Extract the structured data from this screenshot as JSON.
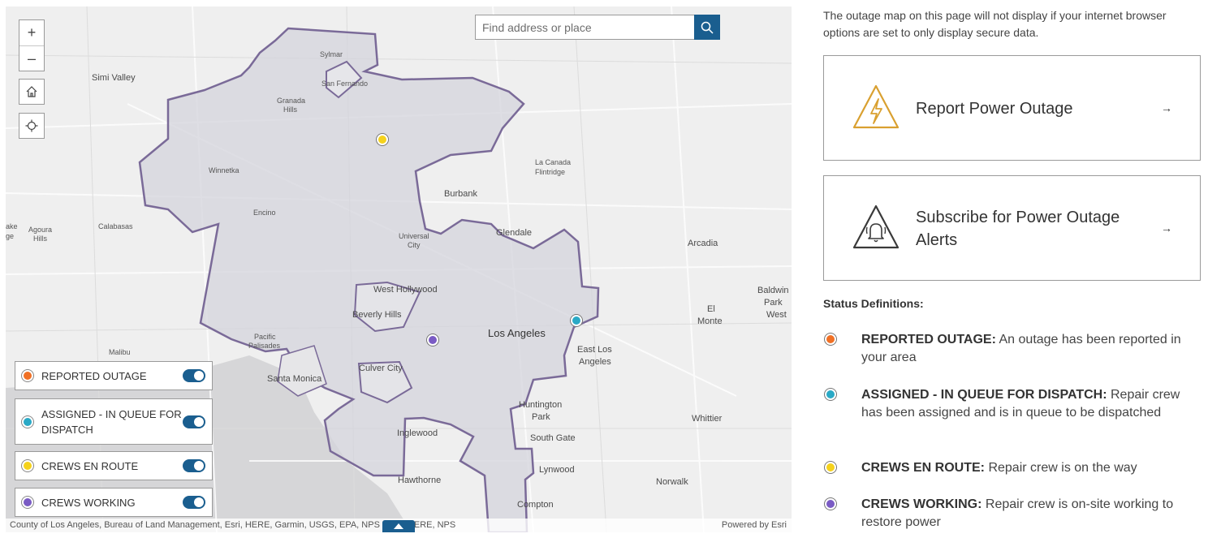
{
  "map": {
    "search_placeholder": "Find address or place",
    "zoom_in": "+",
    "zoom_out": "–",
    "places": {
      "simi_valley": "Simi Valley",
      "sylmar": "Sylmar",
      "san_fernando": "San Fernando",
      "granada_hills_1": "Granada",
      "granada_hills_2": "Hills",
      "winnetka": "Winnetka",
      "la_canada_1": "La Canada",
      "la_canada_2": "Flintridge",
      "burbank": "Burbank",
      "agoura_1": "Agoura",
      "agoura_2": "Hills",
      "calabasas": "Calabasas",
      "encino": "Encino",
      "universal_1": "Universal",
      "universal_2": "City",
      "glendale": "Glendale",
      "arcadia": "Arcadia",
      "baldwin_1": "Baldwin",
      "baldwin_2": "Park",
      "baldwin_3": "West",
      "west_hollywood": "West Hollywood",
      "el_monte_1": "El",
      "el_monte_2": "Monte",
      "beverly_hills": "Beverly Hills",
      "pacific_1": "Pacific",
      "pacific_2": "Palisades",
      "los_angeles": "Los Angeles",
      "malibu": "Malibu",
      "east_la_1": "East Los",
      "east_la_2": "Angeles",
      "santa_monica": "Santa Monica",
      "culver_city": "Culver City",
      "huntington_1": "Huntington",
      "huntington_2": "Park",
      "whittier": "Whittier",
      "inglewood": "Inglewood",
      "south_gate": "South Gate",
      "lynwood": "Lynwood",
      "hawthorne": "Hawthorne",
      "norwalk": "Norwalk",
      "compton": "Compton",
      "lake_1": "ake",
      "lake_2": "ge"
    },
    "legend": [
      {
        "label": "REPORTED OUTAGE",
        "color": "#f07025",
        "enabled": true
      },
      {
        "label": "ASSIGNED - IN QUEUE FOR DISPATCH",
        "color": "#2aa9c6",
        "enabled": true
      },
      {
        "label": "CREWS EN ROUTE",
        "color": "#f5d21c",
        "enabled": true
      },
      {
        "label": "CREWS WORKING",
        "color": "#7a5bc4",
        "enabled": true
      }
    ],
    "attribution": "County of Los Angeles, Bureau of Land Management, Esri, HERE, Garmin, USGS, EPA, NPS | Esri, HERE, NPS",
    "powered_by": "Powered by Esri"
  },
  "panel": {
    "note": "The outage map on this page will not display if your internet browser options are set to only display secure data.",
    "report_card": {
      "title": "Report Power Outage",
      "arrow": "→",
      "icon": "warning-lightning-icon"
    },
    "subscribe_card": {
      "title": "Subscribe for Power Outage Alerts",
      "arrow": "→",
      "icon": "alert-bell-icon"
    },
    "status_heading": "Status Definitions:",
    "definitions": [
      {
        "term": "REPORTED OUTAGE:",
        "text": "An outage has been reported in your area",
        "color": "#f07025"
      },
      {
        "term": "ASSIGNED - IN QUEUE FOR DISPATCH:",
        "text": "Repair crew has been assigned and is in queue to be dispatched",
        "color": "#2aa9c6"
      },
      {
        "term": "CREWS EN ROUTE:",
        "text": "Repair crew is on the way",
        "color": "#f5d21c"
      },
      {
        "term": "CREWS WORKING:",
        "text": "Repair crew is on-site working to restore power",
        "color": "#7a5bc4"
      }
    ]
  }
}
